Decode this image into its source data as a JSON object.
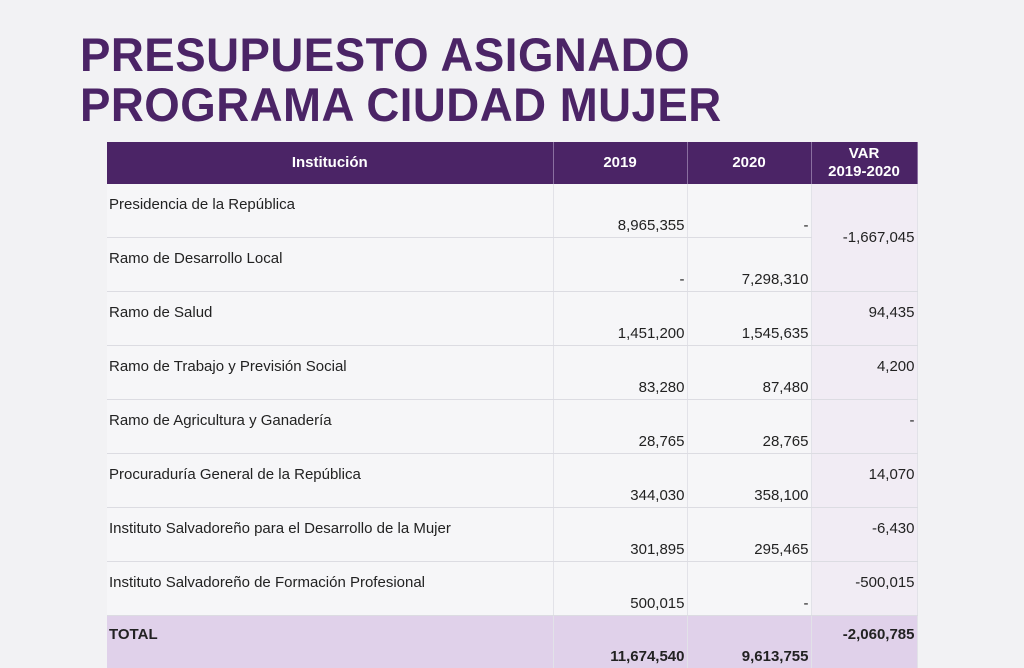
{
  "title": {
    "line1": "PRESUPUESTO ASIGNADO",
    "line2": "PROGRAMA CIUDAD MUJER"
  },
  "table": {
    "headers": {
      "institution": "Institución",
      "y2019": "2019",
      "y2020": "2020",
      "var_line1": "VAR",
      "var_line2": "2019-2020"
    },
    "rows": [
      {
        "name": "Presidencia de la República",
        "y2019": "8,965,355",
        "y2020": "-",
        "var": "-1,667,045"
      },
      {
        "name": "Ramo de Desarrollo Local",
        "y2019": "-",
        "y2020": "7,298,310"
      },
      {
        "name": "Ramo de Salud",
        "y2019": "1,451,200",
        "y2020": "1,545,635",
        "var": "94,435"
      },
      {
        "name": "Ramo de Trabajo y Previsión Social",
        "y2019": "83,280",
        "y2020": "87,480",
        "var": "4,200"
      },
      {
        "name": "Ramo de Agricultura y Ganadería",
        "y2019": "28,765",
        "y2020": "28,765",
        "var": "-"
      },
      {
        "name": "Procuraduría General de la República",
        "y2019": "344,030",
        "y2020": "358,100",
        "var": "14,070"
      },
      {
        "name": "Instituto Salvadoreño para el Desarrollo de la Mujer",
        "y2019": "301,895",
        "y2020": "295,465",
        "var": "-6,430"
      },
      {
        "name": "Instituto Salvadoreño de Formación Profesional",
        "y2019": "500,015",
        "y2020": "-",
        "var": "-500,015"
      }
    ],
    "total": {
      "name": "TOTAL",
      "y2019": "11,674,540",
      "y2020": "9,613,755",
      "var": "-2,060,785"
    }
  }
}
